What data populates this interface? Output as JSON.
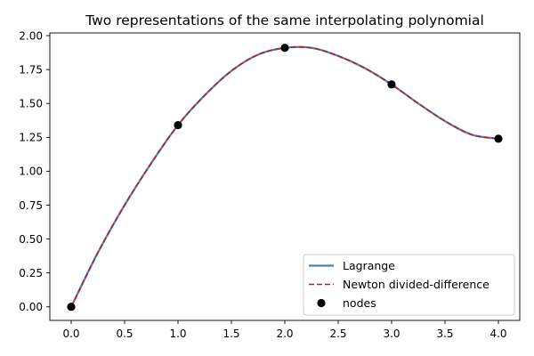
{
  "chart_data": {
    "type": "line",
    "title": "Two representations of the same interpolating polynomial",
    "xlabel": "",
    "ylabel": "",
    "xlim": [
      -0.2,
      4.2
    ],
    "ylim": [
      -0.1,
      2.02
    ],
    "x_ticks": [
      0.0,
      0.5,
      1.0,
      1.5,
      2.0,
      2.5,
      3.0,
      3.5,
      4.0
    ],
    "x_tick_labels": [
      "0.0",
      "0.5",
      "1.0",
      "1.5",
      "2.0",
      "2.5",
      "3.0",
      "3.5",
      "4.0"
    ],
    "y_ticks": [
      0.0,
      0.25,
      0.5,
      0.75,
      1.0,
      1.25,
      1.5,
      1.75,
      2.0
    ],
    "y_tick_labels": [
      "0.00",
      "0.25",
      "0.50",
      "0.75",
      "1.00",
      "1.25",
      "1.50",
      "1.75",
      "2.00"
    ],
    "grid": false,
    "legend_position": "lower-right",
    "nodes": {
      "name": "nodes",
      "x": [
        0,
        1,
        2,
        3,
        4
      ],
      "y": [
        0.0,
        1.34,
        1.91,
        1.64,
        1.24
      ],
      "color": "#000000"
    },
    "series": [
      {
        "name": "Lagrange",
        "style": "solid",
        "color": "#4682b4",
        "x": [
          0,
          0.25,
          0.5,
          0.75,
          1.0,
          1.25,
          1.5,
          1.75,
          2.0,
          2.25,
          2.5,
          2.75,
          3.0,
          3.25,
          3.5,
          3.75,
          4.0
        ],
        "y": [
          0.0,
          0.4,
          0.75,
          1.06,
          1.34,
          1.56,
          1.74,
          1.86,
          1.91,
          1.91,
          1.85,
          1.76,
          1.64,
          1.5,
          1.37,
          1.27,
          1.24
        ]
      },
      {
        "name": "Newton divided-difference",
        "style": "dashed",
        "color": "#b22222",
        "x": [
          0,
          0.25,
          0.5,
          0.75,
          1.0,
          1.25,
          1.5,
          1.75,
          2.0,
          2.25,
          2.5,
          2.75,
          3.0,
          3.25,
          3.5,
          3.75,
          4.0
        ],
        "y": [
          0.0,
          0.4,
          0.75,
          1.06,
          1.34,
          1.56,
          1.74,
          1.86,
          1.91,
          1.91,
          1.85,
          1.76,
          1.64,
          1.5,
          1.37,
          1.27,
          1.24
        ]
      }
    ]
  }
}
